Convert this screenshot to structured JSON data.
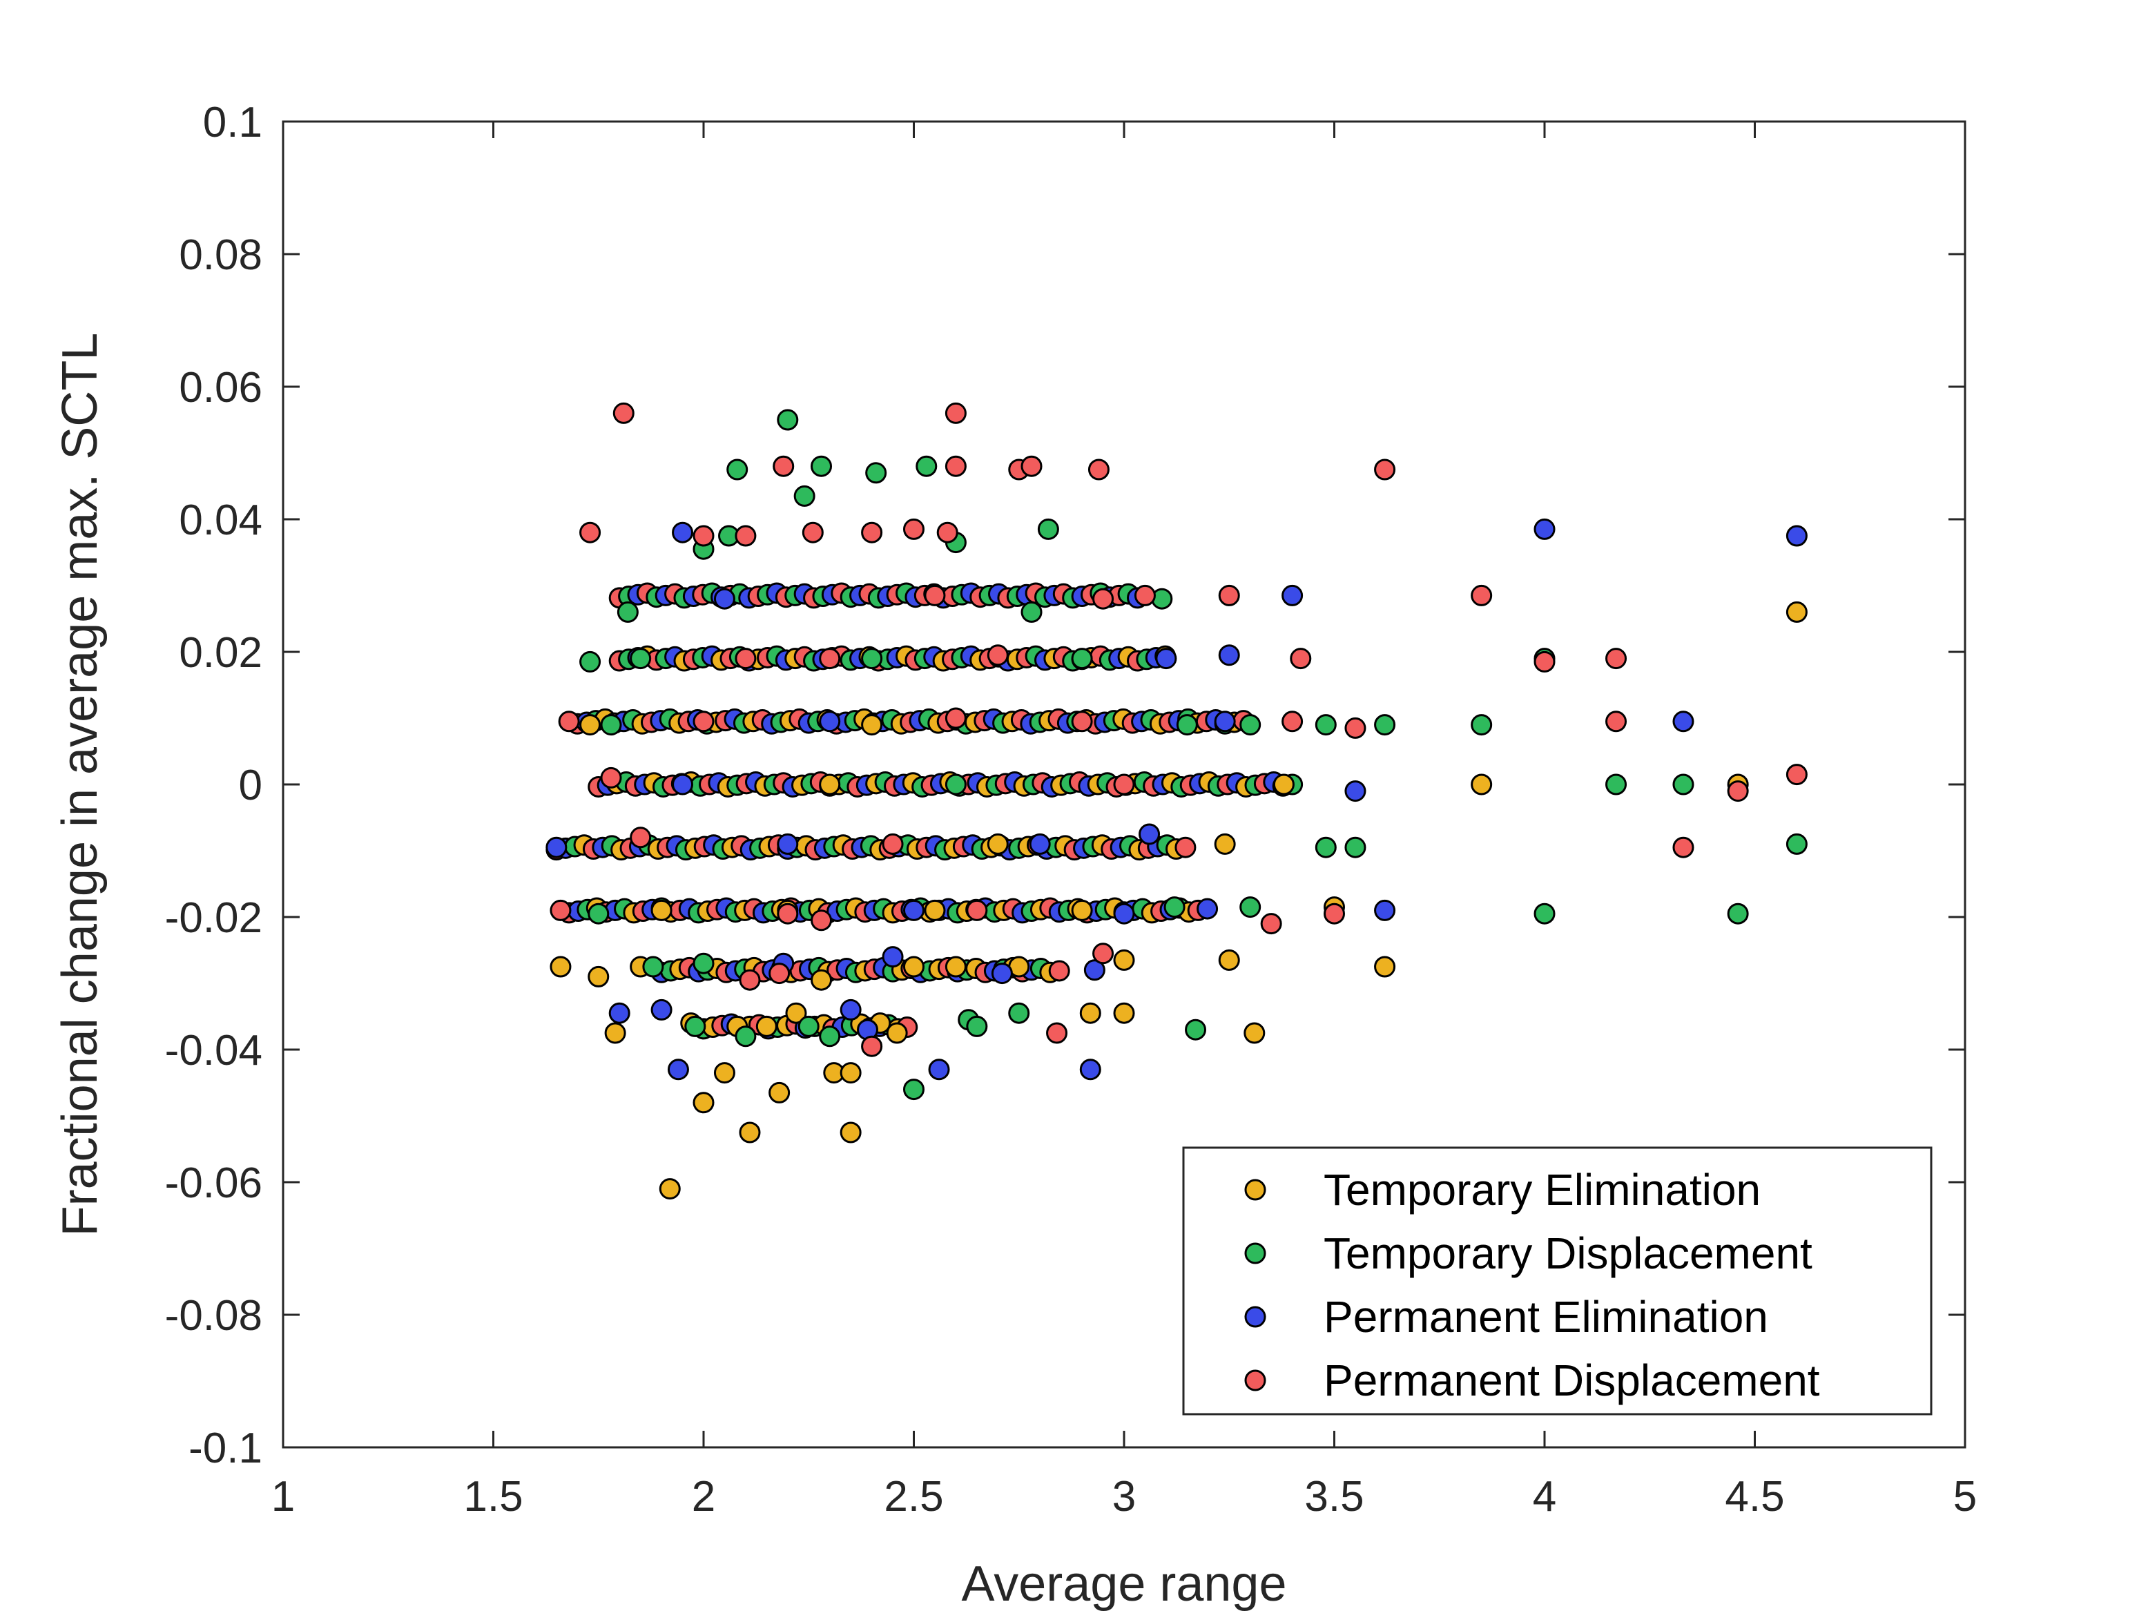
{
  "chart_data": {
    "type": "scatter",
    "title": "",
    "xlabel": "Average range",
    "ylabel": "Fractional change in average max. SCTL",
    "xlim": [
      1,
      5
    ],
    "ylim": [
      -0.1,
      0.1
    ],
    "xticks": [
      1,
      1.5,
      2,
      2.5,
      3,
      3.5,
      4,
      4.5,
      5
    ],
    "xtick_labels": [
      "1",
      "1.5",
      "2",
      "2.5",
      "3",
      "3.5",
      "4",
      "4.5",
      "5"
    ],
    "yticks": [
      -0.1,
      -0.08,
      -0.06,
      -0.04,
      -0.02,
      0,
      0.02,
      0.04,
      0.06,
      0.08,
      0.1
    ],
    "ytick_labels": [
      "-0.1",
      "-0.08",
      "-0.06",
      "-0.04",
      "-0.02",
      "0",
      "0.02",
      "0.04",
      "0.06",
      "0.08",
      "0.1"
    ],
    "grid": false,
    "legend_position": "bottom-right",
    "series": [
      {
        "name": "Temporary Elimination",
        "color": "#EDB120",
        "points": [
          [
            1.66,
            -0.0275
          ],
          [
            1.75,
            -0.029
          ],
          [
            1.79,
            -0.0375
          ],
          [
            1.85,
            -0.0275
          ],
          [
            1.92,
            -0.061
          ],
          [
            1.97,
            -0.036
          ],
          [
            2.0,
            -0.048
          ],
          [
            2.05,
            -0.0435
          ],
          [
            2.08,
            -0.0365
          ],
          [
            2.11,
            -0.0525
          ],
          [
            2.15,
            -0.0365
          ],
          [
            2.18,
            -0.0465
          ],
          [
            2.22,
            -0.0345
          ],
          [
            2.28,
            -0.0295
          ],
          [
            2.31,
            -0.0435
          ],
          [
            2.35,
            -0.0435
          ],
          [
            2.35,
            -0.0525
          ],
          [
            2.42,
            -0.036
          ],
          [
            2.46,
            -0.0375
          ],
          [
            2.5,
            -0.0275
          ],
          [
            2.6,
            -0.0275
          ],
          [
            2.75,
            -0.0275
          ],
          [
            2.92,
            -0.0345
          ],
          [
            3.0,
            -0.0265
          ],
          [
            3.0,
            -0.0345
          ],
          [
            3.25,
            -0.0265
          ],
          [
            3.31,
            -0.0375
          ],
          [
            3.5,
            -0.0185
          ],
          [
            3.62,
            -0.0275
          ],
          [
            1.9,
            -0.019
          ],
          [
            2.2,
            -0.019
          ],
          [
            2.55,
            -0.019
          ],
          [
            2.9,
            -0.019
          ],
          [
            3.24,
            -0.009
          ],
          [
            3.38,
            0.0
          ],
          [
            3.85,
            0.0
          ],
          [
            1.73,
            0.009
          ],
          [
            2.4,
            0.009
          ],
          [
            4.46,
            0.0
          ],
          [
            4.6,
            0.026
          ],
          [
            2.3,
            0.0
          ],
          [
            2.7,
            -0.009
          ]
        ]
      },
      {
        "name": "Temporary Displacement",
        "color": "#2EBA5C",
        "points": [
          [
            1.73,
            0.0185
          ],
          [
            1.82,
            0.026
          ],
          [
            2.0,
            0.0355
          ],
          [
            2.06,
            0.0375
          ],
          [
            2.08,
            0.0475
          ],
          [
            2.2,
            0.055
          ],
          [
            2.24,
            0.0435
          ],
          [
            2.28,
            0.048
          ],
          [
            2.41,
            0.047
          ],
          [
            2.53,
            0.048
          ],
          [
            2.6,
            0.0365
          ],
          [
            2.78,
            0.026
          ],
          [
            2.82,
            0.0385
          ],
          [
            3.09,
            0.028
          ],
          [
            3.15,
            0.009
          ],
          [
            3.3,
            0.009
          ],
          [
            3.48,
            0.009
          ],
          [
            3.62,
            0.009
          ],
          [
            3.85,
            0.009
          ],
          [
            4.0,
            0.019
          ],
          [
            4.17,
            0.0
          ],
          [
            4.33,
            0.0
          ],
          [
            4.6,
            -0.009
          ],
          [
            4.46,
            -0.0195
          ],
          [
            4.0,
            -0.0195
          ],
          [
            3.55,
            -0.0095
          ],
          [
            3.48,
            -0.0095
          ],
          [
            3.3,
            -0.0185
          ],
          [
            3.17,
            -0.037
          ],
          [
            3.12,
            -0.0185
          ],
          [
            2.5,
            -0.046
          ],
          [
            2.63,
            -0.0355
          ],
          [
            2.65,
            -0.0365
          ],
          [
            2.75,
            -0.0345
          ],
          [
            2.3,
            -0.038
          ],
          [
            2.25,
            -0.0365
          ],
          [
            2.1,
            -0.038
          ],
          [
            1.98,
            -0.0365
          ],
          [
            2.0,
            -0.027
          ],
          [
            1.88,
            -0.0275
          ],
          [
            1.75,
            -0.0195
          ],
          [
            2.4,
            0.019
          ],
          [
            2.9,
            0.019
          ],
          [
            1.85,
            0.019
          ],
          [
            1.78,
            0.009
          ],
          [
            2.6,
            0.0
          ]
        ]
      },
      {
        "name": "Permanent Elimination",
        "color": "#3A4BE8",
        "points": [
          [
            1.65,
            -0.0095
          ],
          [
            1.8,
            -0.0345
          ],
          [
            1.94,
            -0.043
          ],
          [
            1.95,
            0.038
          ],
          [
            2.19,
            -0.027
          ],
          [
            2.35,
            -0.034
          ],
          [
            2.39,
            -0.037
          ],
          [
            2.56,
            -0.043
          ],
          [
            2.71,
            -0.0285
          ],
          [
            2.92,
            -0.043
          ],
          [
            2.93,
            -0.028
          ],
          [
            3.0,
            -0.0195
          ],
          [
            3.06,
            -0.0075
          ],
          [
            3.1,
            0.019
          ],
          [
            3.25,
            0.0195
          ],
          [
            3.4,
            0.0285
          ],
          [
            3.55,
            -0.001
          ],
          [
            3.62,
            -0.019
          ],
          [
            4.0,
            0.0385
          ],
          [
            4.33,
            0.0095
          ],
          [
            4.6,
            0.0375
          ],
          [
            1.95,
            0.0
          ],
          [
            2.2,
            -0.009
          ],
          [
            2.5,
            -0.019
          ],
          [
            2.8,
            -0.009
          ],
          [
            2.3,
            0.0095
          ],
          [
            2.05,
            0.028
          ],
          [
            2.45,
            -0.026
          ],
          [
            1.9,
            -0.034
          ],
          [
            3.24,
            0.0095
          ]
        ]
      },
      {
        "name": "Permanent Displacement",
        "color": "#F25C5C",
        "points": [
          [
            1.81,
            0.056
          ],
          [
            1.73,
            0.038
          ],
          [
            2.0,
            0.0375
          ],
          [
            2.1,
            0.0375
          ],
          [
            2.19,
            0.048
          ],
          [
            2.26,
            0.038
          ],
          [
            2.4,
            0.038
          ],
          [
            2.5,
            0.0385
          ],
          [
            2.58,
            0.038
          ],
          [
            2.6,
            0.056
          ],
          [
            2.6,
            0.048
          ],
          [
            2.75,
            0.0475
          ],
          [
            2.78,
            0.048
          ],
          [
            2.94,
            0.0475
          ],
          [
            3.62,
            0.0475
          ],
          [
            3.85,
            0.0285
          ],
          [
            3.25,
            0.0285
          ],
          [
            3.42,
            0.019
          ],
          [
            4.0,
            0.0185
          ],
          [
            4.17,
            0.019
          ],
          [
            4.17,
            0.0095
          ],
          [
            4.33,
            -0.0095
          ],
          [
            4.6,
            0.0015
          ],
          [
            4.46,
            -0.001
          ],
          [
            3.35,
            -0.021
          ],
          [
            3.5,
            -0.0195
          ],
          [
            3.55,
            0.0085
          ],
          [
            3.05,
            0.0285
          ],
          [
            2.84,
            -0.0375
          ],
          [
            2.95,
            -0.0255
          ],
          [
            2.4,
            -0.0395
          ],
          [
            2.28,
            -0.0205
          ],
          [
            2.11,
            -0.0295
          ],
          [
            2.18,
            -0.0285
          ],
          [
            1.66,
            -0.019
          ],
          [
            1.68,
            0.0095
          ],
          [
            1.78,
            0.001
          ],
          [
            2.0,
            0.0095
          ],
          [
            2.3,
            0.019
          ],
          [
            2.55,
            0.0285
          ],
          [
            2.7,
            0.0195
          ],
          [
            2.9,
            0.0095
          ],
          [
            3.0,
            0.0
          ],
          [
            1.85,
            -0.008
          ],
          [
            2.45,
            -0.009
          ],
          [
            2.65,
            -0.019
          ],
          [
            2.2,
            -0.0195
          ],
          [
            2.95,
            0.028
          ],
          [
            3.4,
            0.0095
          ],
          [
            2.1,
            0.019
          ],
          [
            2.6,
            0.01
          ]
        ]
      }
    ],
    "dense_bands": [
      {
        "y": 0.0285,
        "x_start": 1.8,
        "x_end": 3.05,
        "colors": [
          "#F25C5C",
          "#2EBA5C",
          "#3A4BE8"
        ]
      },
      {
        "y": 0.019,
        "x_start": 1.8,
        "x_end": 3.1,
        "colors": [
          "#F25C5C",
          "#2EBA5C",
          "#3A4BE8",
          "#EDB120"
        ]
      },
      {
        "y": 0.0095,
        "x_start": 1.7,
        "x_end": 3.3,
        "colors": [
          "#F25C5C",
          "#3A4BE8",
          "#2EBA5C",
          "#EDB120"
        ]
      },
      {
        "y": 0.0,
        "x_start": 1.75,
        "x_end": 3.4,
        "colors": [
          "#F25C5C",
          "#3A4BE8",
          "#EDB120",
          "#2EBA5C"
        ]
      },
      {
        "y": -0.0095,
        "x_start": 1.65,
        "x_end": 3.15,
        "colors": [
          "#F25C5C",
          "#3A4BE8",
          "#2EBA5C",
          "#EDB120"
        ]
      },
      {
        "y": -0.019,
        "x_start": 1.68,
        "x_end": 3.2,
        "colors": [
          "#F25C5C",
          "#3A4BE8",
          "#2EBA5C",
          "#EDB120"
        ]
      },
      {
        "y": -0.028,
        "x_start": 1.9,
        "x_end": 2.85,
        "colors": [
          "#3A4BE8",
          "#2EBA5C",
          "#EDB120",
          "#F25C5C"
        ]
      },
      {
        "y": -0.0365,
        "x_start": 2.0,
        "x_end": 2.5,
        "colors": [
          "#2EBA5C",
          "#EDB120",
          "#F25C5C",
          "#3A4BE8"
        ]
      }
    ]
  }
}
